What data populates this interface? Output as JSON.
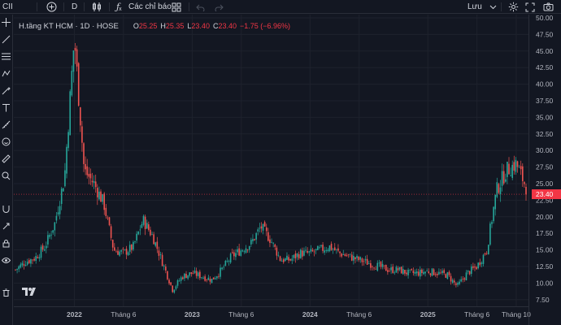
{
  "toolbar": {
    "symbol": "CII",
    "interval": "D",
    "indicators_label": "Các chỉ báo",
    "save_label": "Lưu",
    "icons": [
      "plus-circle-icon",
      "candles-icon",
      "fx-icon",
      "layout-grid-icon",
      "undo-icon",
      "redo-icon",
      "gear-icon",
      "camera-icon"
    ]
  },
  "legend": {
    "title": "H.tầng KT HCM · 1D · HOSE",
    "open_label": "O",
    "open": "25.25",
    "high_label": "H",
    "high": "25.35",
    "low_label": "L",
    "low": "23.40",
    "close_label": "C",
    "close": "23.40",
    "change": "−1.75 (−6.96%)"
  },
  "chart_data": {
    "type": "candlestick",
    "price_axis": {
      "ticks": [
        "50.00",
        "47.50",
        "45.00",
        "42.50",
        "40.00",
        "37.50",
        "35.00",
        "32.50",
        "30.00",
        "27.50",
        "25.00",
        "22.50",
        "20.00",
        "17.50",
        "15.00",
        "12.50",
        "10.00",
        "7.50"
      ],
      "range": [
        6,
        50
      ],
      "last_price": "23.40"
    },
    "time_axis": {
      "labels": [
        "2022",
        "Tháng 6",
        "2023",
        "Tháng 6",
        "2024",
        "Tháng 6",
        "2025",
        "Tháng 6",
        "Tháng 10"
      ],
      "bold": [
        true,
        false,
        true,
        false,
        true,
        false,
        true,
        false,
        false
      ],
      "start": "2021-07",
      "end": "2025-11"
    },
    "price_path": [
      {
        "date": "2021-07",
        "price": 12.0
      },
      {
        "date": "2021-08",
        "price": 13.2
      },
      {
        "date": "2021-09",
        "price": 13.8
      },
      {
        "date": "2021-10",
        "price": 15.5
      },
      {
        "date": "2021-11",
        "price": 19.0
      },
      {
        "date": "2021-12",
        "price": 26.0
      },
      {
        "date": "2022-01",
        "price": 47.0
      },
      {
        "date": "2022-02",
        "price": 27.0
      },
      {
        "date": "2022-03",
        "price": 25.0
      },
      {
        "date": "2022-04",
        "price": 22.0
      },
      {
        "date": "2022-05",
        "price": 15.0
      },
      {
        "date": "2022-06",
        "price": 14.5
      },
      {
        "date": "2022-07",
        "price": 15.5
      },
      {
        "date": "2022-08",
        "price": 19.5
      },
      {
        "date": "2022-09",
        "price": 17.0
      },
      {
        "date": "2022-10",
        "price": 13.0
      },
      {
        "date": "2022-11",
        "price": 9.0
      },
      {
        "date": "2022-12",
        "price": 11.0
      },
      {
        "date": "2023-01",
        "price": 11.5
      },
      {
        "date": "2023-02",
        "price": 11.0
      },
      {
        "date": "2023-03",
        "price": 10.5
      },
      {
        "date": "2023-04",
        "price": 12.0
      },
      {
        "date": "2023-05",
        "price": 14.0
      },
      {
        "date": "2023-06",
        "price": 15.0
      },
      {
        "date": "2023-07",
        "price": 16.0
      },
      {
        "date": "2023-08",
        "price": 18.5
      },
      {
        "date": "2023-09",
        "price": 16.5
      },
      {
        "date": "2023-10",
        "price": 13.5
      },
      {
        "date": "2023-11",
        "price": 13.5
      },
      {
        "date": "2023-12",
        "price": 14.5
      },
      {
        "date": "2024-01",
        "price": 14.5
      },
      {
        "date": "2024-02",
        "price": 15.0
      },
      {
        "date": "2024-03",
        "price": 15.5
      },
      {
        "date": "2024-04",
        "price": 14.5
      },
      {
        "date": "2024-05",
        "price": 14.0
      },
      {
        "date": "2024-06",
        "price": 13.5
      },
      {
        "date": "2024-07",
        "price": 13.0
      },
      {
        "date": "2024-08",
        "price": 12.5
      },
      {
        "date": "2024-09",
        "price": 12.0
      },
      {
        "date": "2024-10",
        "price": 12.0
      },
      {
        "date": "2024-11",
        "price": 11.5
      },
      {
        "date": "2024-12",
        "price": 11.5
      },
      {
        "date": "2025-01",
        "price": 11.8
      },
      {
        "date": "2025-02",
        "price": 11.5
      },
      {
        "date": "2025-03",
        "price": 11.2
      },
      {
        "date": "2025-04",
        "price": 9.5
      },
      {
        "date": "2025-05",
        "price": 11.5
      },
      {
        "date": "2025-06",
        "price": 12.5
      },
      {
        "date": "2025-07",
        "price": 15.0
      },
      {
        "date": "2025-08",
        "price": 24.0
      },
      {
        "date": "2025-09",
        "price": 27.0
      },
      {
        "date": "2025-10",
        "price": 28.0
      },
      {
        "date": "2025-11",
        "price": 24.5
      }
    ],
    "colors": {
      "up": "#26a69a",
      "down": "#ef5350",
      "last_badge": "#f23645",
      "background": "#131722",
      "grid": "#1e222d",
      "axis_text": "#b2b5be"
    }
  }
}
